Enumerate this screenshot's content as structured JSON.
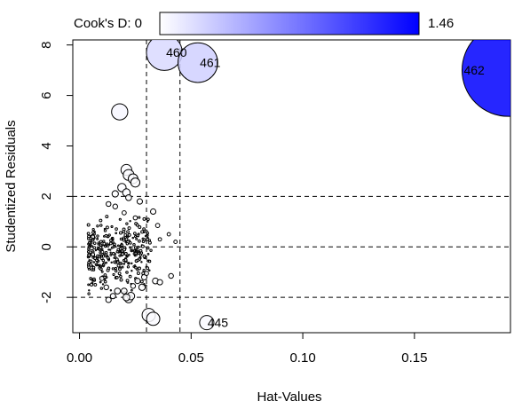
{
  "chart_data": {
    "type": "scatter",
    "title": "",
    "xlabel": "Hat-Values",
    "ylabel": "Studentized Residuals",
    "xlim": [
      -0.003,
      0.193
    ],
    "ylim": [
      -3.4,
      8.2
    ],
    "x_ticks": [
      0.0,
      0.05,
      0.1,
      0.15
    ],
    "x_tick_labels": [
      "0.00",
      "0.05",
      "0.10",
      "0.15"
    ],
    "y_ticks": [
      -2,
      0,
      2,
      4,
      6,
      8
    ],
    "y_tick_labels": [
      "-2",
      "0",
      "2",
      "4",
      "6",
      "8"
    ],
    "grid": false,
    "reference_lines": {
      "horizontal": [
        -2,
        0,
        2
      ],
      "vertical": [
        0.03,
        0.045
      ],
      "style": "dashed"
    },
    "legend": {
      "label": "Cook's D:",
      "min_label": "0",
      "max_label": "1.46",
      "min": 0,
      "max": 1.46,
      "color_low": "#ffffff",
      "color_high": "#0000ff",
      "placement": "top"
    },
    "point_style": {
      "stroke": "#000000",
      "fill_scale": "cooks_d"
    },
    "labeled_points": [
      {
        "label": "460",
        "x": 0.038,
        "y": 7.7,
        "cooks_d": 0.22
      },
      {
        "label": "461",
        "x": 0.053,
        "y": 7.3,
        "cooks_d": 0.27
      },
      {
        "label": "462",
        "x": 0.192,
        "y": 7.0,
        "cooks_d": 1.46
      },
      {
        "label": "445",
        "x": 0.057,
        "y": -3.0,
        "cooks_d": 0.035
      }
    ],
    "other_points": [
      {
        "x": 0.018,
        "y": 5.35,
        "cooks_d": 0.045
      },
      {
        "x": 0.021,
        "y": 3.05,
        "cooks_d": 0.02
      },
      {
        "x": 0.022,
        "y": 2.85,
        "cooks_d": 0.02
      },
      {
        "x": 0.024,
        "y": 2.7,
        "cooks_d": 0.016
      },
      {
        "x": 0.025,
        "y": 2.55,
        "cooks_d": 0.014
      },
      {
        "x": 0.019,
        "y": 2.35,
        "cooks_d": 0.012
      },
      {
        "x": 0.021,
        "y": 2.15,
        "cooks_d": 0.01
      },
      {
        "x": 0.016,
        "y": 2.1,
        "cooks_d": 0.007
      },
      {
        "x": 0.022,
        "y": 1.95,
        "cooks_d": 0.006
      },
      {
        "x": 0.027,
        "y": 1.8,
        "cooks_d": 0.005
      },
      {
        "x": 0.033,
        "y": 1.4,
        "cooks_d": 0.005
      },
      {
        "x": 0.016,
        "y": 1.6,
        "cooks_d": 0.004
      },
      {
        "x": 0.013,
        "y": 1.7,
        "cooks_d": 0.004
      },
      {
        "x": 0.025,
        "y": 1.15,
        "cooks_d": 0.003
      },
      {
        "x": 0.02,
        "y": 1.35,
        "cooks_d": 0.003
      },
      {
        "x": 0.035,
        "y": 0.85,
        "cooks_d": 0.003
      },
      {
        "x": 0.04,
        "y": 0.5,
        "cooks_d": 0.002
      },
      {
        "x": 0.036,
        "y": 0.3,
        "cooks_d": 0.002
      },
      {
        "x": 0.043,
        "y": 0.2,
        "cooks_d": 0.002
      },
      {
        "x": 0.031,
        "y": -2.7,
        "cooks_d": 0.03
      },
      {
        "x": 0.033,
        "y": -2.85,
        "cooks_d": 0.03
      },
      {
        "x": 0.022,
        "y": -2.05,
        "cooks_d": 0.012
      },
      {
        "x": 0.023,
        "y": -1.95,
        "cooks_d": 0.01
      },
      {
        "x": 0.021,
        "y": -2.0,
        "cooks_d": 0.008
      },
      {
        "x": 0.02,
        "y": -1.75,
        "cooks_d": 0.006
      },
      {
        "x": 0.017,
        "y": -1.75,
        "cooks_d": 0.006
      },
      {
        "x": 0.015,
        "y": -1.95,
        "cooks_d": 0.005
      },
      {
        "x": 0.013,
        "y": -2.1,
        "cooks_d": 0.005
      },
      {
        "x": 0.028,
        "y": -1.6,
        "cooks_d": 0.007
      },
      {
        "x": 0.026,
        "y": -1.35,
        "cooks_d": 0.005
      },
      {
        "x": 0.029,
        "y": -1.2,
        "cooks_d": 0.005
      },
      {
        "x": 0.034,
        "y": -1.35,
        "cooks_d": 0.006
      },
      {
        "x": 0.036,
        "y": -1.4,
        "cooks_d": 0.005
      },
      {
        "x": 0.041,
        "y": -1.15,
        "cooks_d": 0.004
      },
      {
        "x": 0.012,
        "y": -1.6,
        "cooks_d": 0.004
      },
      {
        "x": 0.01,
        "y": -1.25,
        "cooks_d": 0.003
      },
      {
        "x": 0.024,
        "y": -1.55,
        "cooks_d": 0.004
      },
      {
        "x": 0.03,
        "y": -1.05,
        "cooks_d": 0.003
      },
      {
        "x": 0.006,
        "y": 0.4,
        "cooks_d": 0.002
      },
      {
        "x": 0.006,
        "y": -0.3,
        "cooks_d": 0.002
      }
    ],
    "dense_cluster": {
      "x_range": [
        0.004,
        0.032
      ],
      "y_range": [
        -1.8,
        1.5
      ],
      "count": 360,
      "approx_cooks_d": 0.0006
    }
  }
}
